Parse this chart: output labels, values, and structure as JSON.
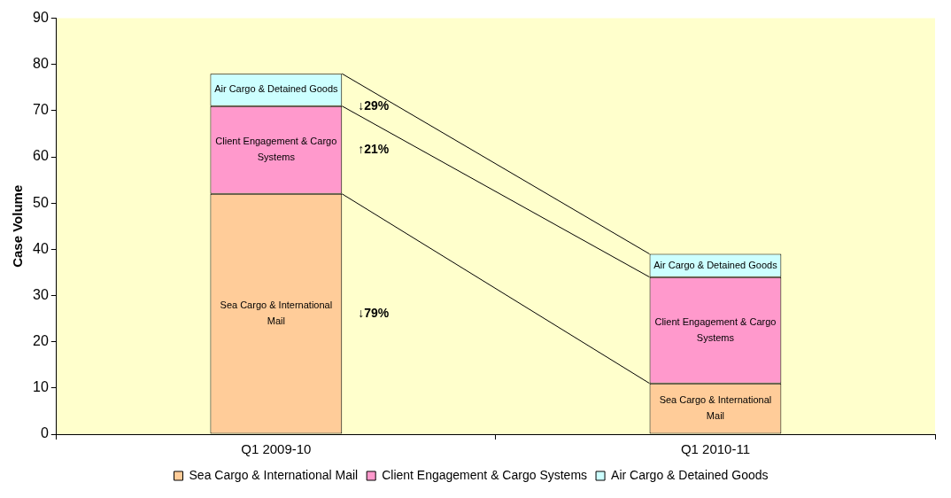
{
  "chart_data": {
    "type": "bar",
    "ylabel": "Case Volume",
    "categories": [
      "Q1 2009-10",
      "Q1 2010-11"
    ],
    "stacked": true,
    "series": [
      {
        "name": "Sea Cargo & International Mail",
        "color": "#ffcc99",
        "values": [
          52,
          11
        ]
      },
      {
        "name": "Client Engagement & Cargo Systems",
        "color": "#ff99cc",
        "values": [
          19,
          23
        ]
      },
      {
        "name": "Air Cargo & Detained Goods",
        "color": "#ccffff",
        "values": [
          7,
          5
        ]
      }
    ],
    "ylim": [
      0,
      90
    ],
    "yticks": [
      0,
      10,
      20,
      30,
      40,
      50,
      60,
      70,
      80,
      90
    ],
    "grid": false,
    "legend": "bottom",
    "annotations": [
      "↓29%",
      "↑21%",
      "↓79%"
    ]
  }
}
